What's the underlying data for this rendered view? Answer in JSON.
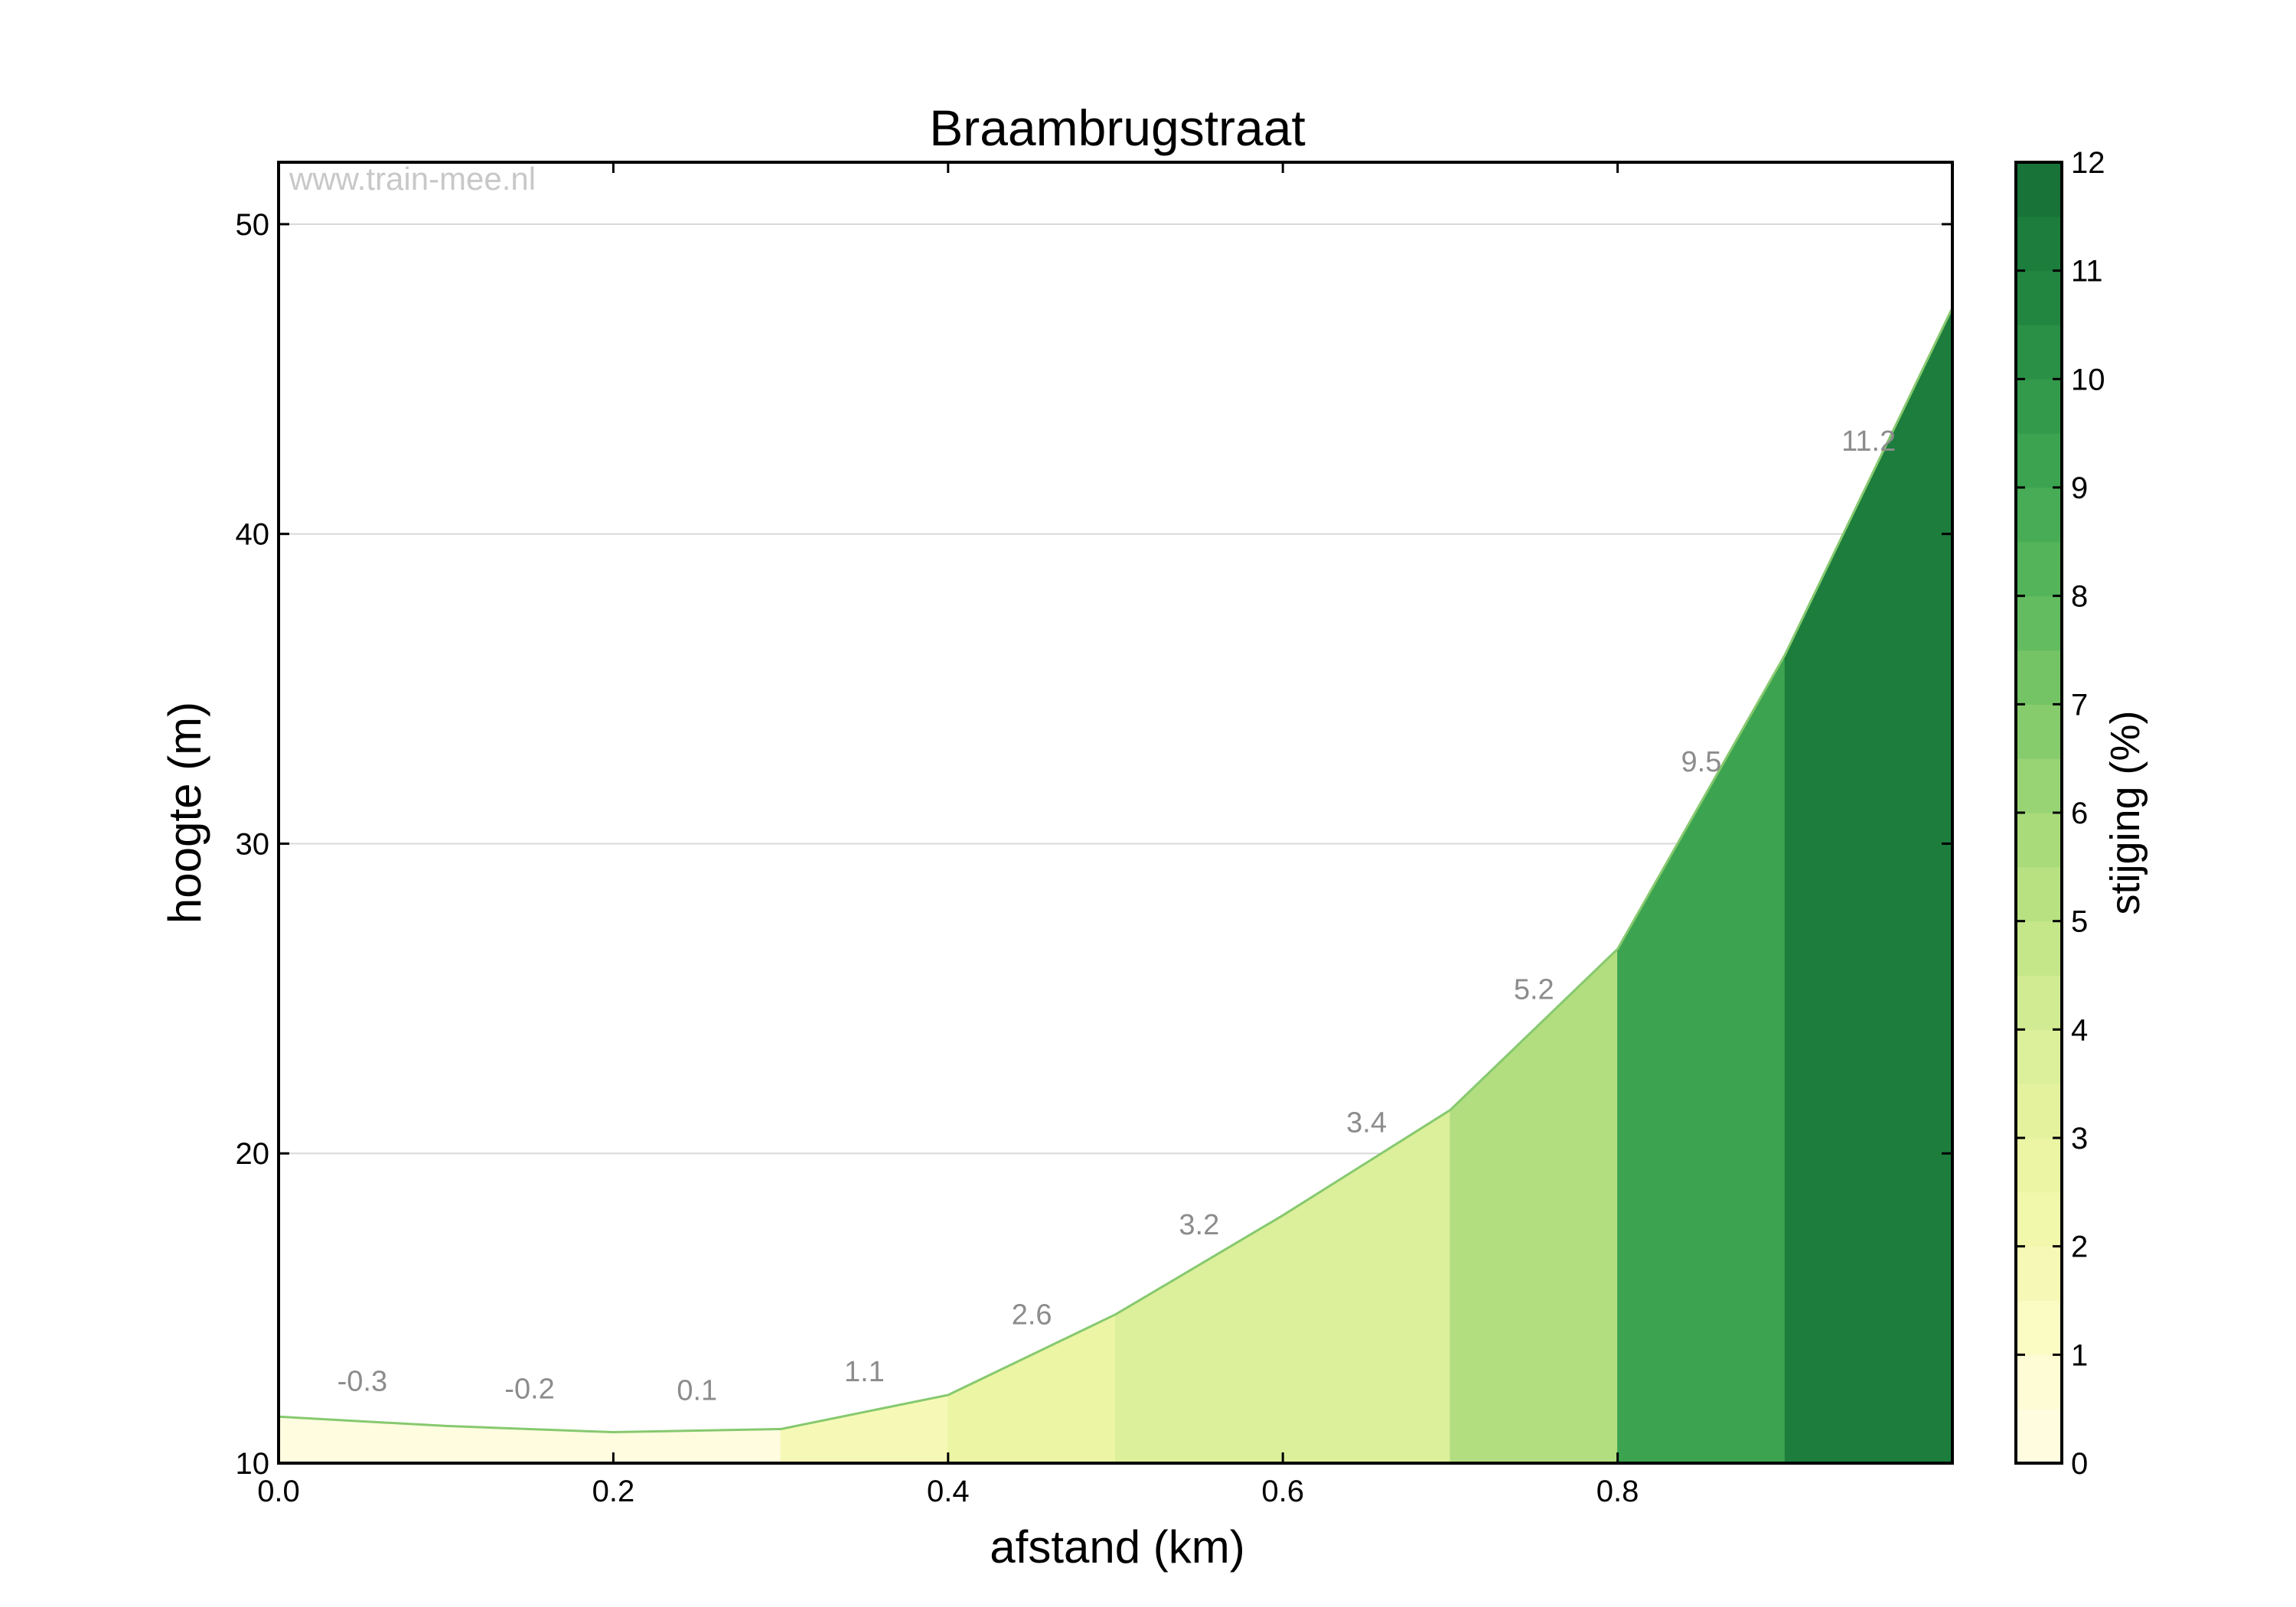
{
  "chart_data": {
    "type": "area",
    "title": "Braambrugstraat",
    "watermark": "www.train-mee.nl",
    "xlabel": "afstand (km)",
    "ylabel": "hoogte (m)",
    "xlim": [
      0.0,
      1.0
    ],
    "ylim": [
      10,
      52
    ],
    "xticks": [
      0.0,
      0.2,
      0.4,
      0.6,
      0.8
    ],
    "xtick_labels": [
      "0.0",
      "0.2",
      "0.4",
      "0.6",
      "0.8"
    ],
    "yticks": [
      10,
      20,
      30,
      40,
      50
    ],
    "ytick_labels": [
      "10",
      "20",
      "30",
      "40",
      "50"
    ],
    "grid": "horizontal",
    "x": [
      0.0,
      0.1,
      0.2,
      0.3,
      0.4,
      0.5,
      0.6,
      0.7,
      0.8,
      0.9,
      1.0
    ],
    "y": [
      11.5,
      11.2,
      11.0,
      11.1,
      12.2,
      14.8,
      18.0,
      21.4,
      26.6,
      36.1,
      47.3
    ],
    "segment_labels": [
      "-0.3",
      "-0.2",
      "0.1",
      "1.1",
      "2.6",
      "3.2",
      "3.4",
      "5.2",
      "9.5",
      "11.2"
    ],
    "segment_values": [
      -0.3,
      -0.2,
      0.1,
      1.1,
      2.6,
      3.2,
      3.4,
      5.2,
      9.5,
      11.2
    ],
    "colorbar": {
      "label": "stijging (%)",
      "range": [
        0,
        12
      ],
      "ticks": [
        0,
        1,
        2,
        3,
        4,
        5,
        6,
        7,
        8,
        9,
        10,
        11,
        12
      ],
      "tick_labels": [
        "0",
        "1",
        "2",
        "3",
        "4",
        "5",
        "6",
        "7",
        "8",
        "9",
        "10",
        "11",
        "12"
      ],
      "levels": [
        0,
        0.5,
        1,
        1.5,
        2,
        2.5,
        3,
        3.5,
        4,
        4.5,
        5,
        5.5,
        6,
        6.5,
        7,
        7.5,
        8,
        8.5,
        9,
        9.5,
        10,
        10.5,
        11,
        11.5,
        12
      ],
      "colors": [
        "#fffce0",
        "#fdfcd4",
        "#fbfbc4",
        "#f6f9b6",
        "#f1f7ab",
        "#ebf5a4",
        "#e4f29e",
        "#dcef9a",
        "#d1eb93",
        "#c5e78a",
        "#b8e182",
        "#a9db7b",
        "#98d474",
        "#86cc6d",
        "#74c466",
        "#63bc60",
        "#54b45a",
        "#47ac55",
        "#3ca450",
        "#339a4b",
        "#2a9046",
        "#228641",
        "#1c7d3c",
        "#177337"
      ]
    },
    "segment_colors": [
      "#fffce0",
      "#fffce0",
      "#fffce0",
      "#f6f9b6",
      "#ebf5a4",
      "#dcef9a",
      "#dcef9a",
      "#b2de7f",
      "#3ca450",
      "#1c7d3c"
    ],
    "profile_line_color": "#86c96f"
  }
}
